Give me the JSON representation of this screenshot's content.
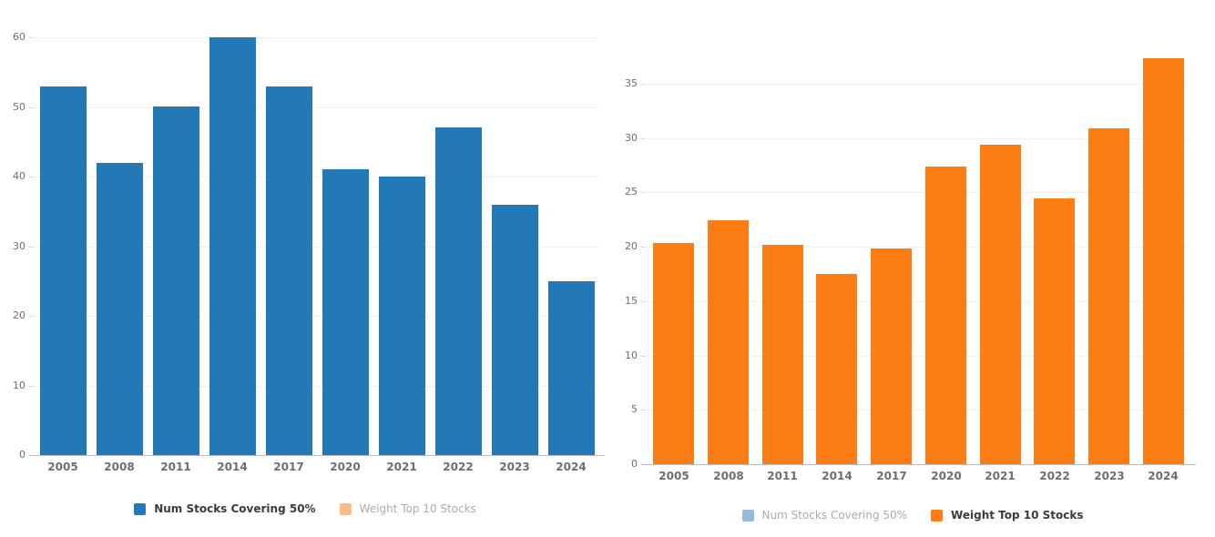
{
  "colors": {
    "bar_blue": "#2279b5",
    "bar_orange": "#fb7d14",
    "inactive_blue": "#92bcd9",
    "inactive_orange": "#fbbd85",
    "gridline": "#f2f2f2",
    "axis_line": "#bdbdbd",
    "tick_dash": "#d9d9d9",
    "tick_text": "#6e6e6e",
    "legend_active_text": "#3b3b3b",
    "legend_inactive_text": "#ababab",
    "background": "#ffffff"
  },
  "chart_data": [
    {
      "id": "num-stocks-covering-50",
      "type": "bar",
      "title": "",
      "xlabel": "",
      "ylabel": "",
      "categories": [
        "2005",
        "2008",
        "2011",
        "2014",
        "2017",
        "2020",
        "2021",
        "2022",
        "2023",
        "2024"
      ],
      "values": [
        53,
        42,
        50,
        60,
        53,
        41,
        40,
        47,
        36,
        25
      ],
      "y_ticks": [
        "0",
        "10",
        "20",
        "30",
        "40",
        "50",
        "60"
      ],
      "ylim": [
        0,
        64
      ],
      "grid": true,
      "legend_position": "bottom",
      "series_color": "#2279b5",
      "legend": [
        {
          "label": "Num Stocks Covering 50%",
          "swatch_color": "#2279b5",
          "active": true
        },
        {
          "label": "Weight Top 10 Stocks",
          "swatch_color": "#fbbd85",
          "active": false
        }
      ]
    },
    {
      "id": "weight-top-10-stocks",
      "type": "bar",
      "title": "",
      "xlabel": "",
      "ylabel": "",
      "categories": [
        "2005",
        "2008",
        "2011",
        "2014",
        "2017",
        "2020",
        "2021",
        "2022",
        "2023",
        "2024"
      ],
      "values": [
        20.3,
        22.4,
        20.2,
        17.5,
        19.8,
        27.4,
        29.4,
        24.4,
        30.9,
        37.3
      ],
      "y_ticks": [
        "0",
        "5",
        "10",
        "15",
        "20",
        "25",
        "30",
        "35"
      ],
      "ylim": [
        0,
        38.9
      ],
      "grid": true,
      "legend_position": "bottom",
      "series_color": "#fb7d14",
      "legend": [
        {
          "label": "Num Stocks Covering 50%",
          "swatch_color": "#92bcd9",
          "active": false
        },
        {
          "label": "Weight Top 10 Stocks",
          "swatch_color": "#fb7d14",
          "active": true
        }
      ]
    }
  ]
}
